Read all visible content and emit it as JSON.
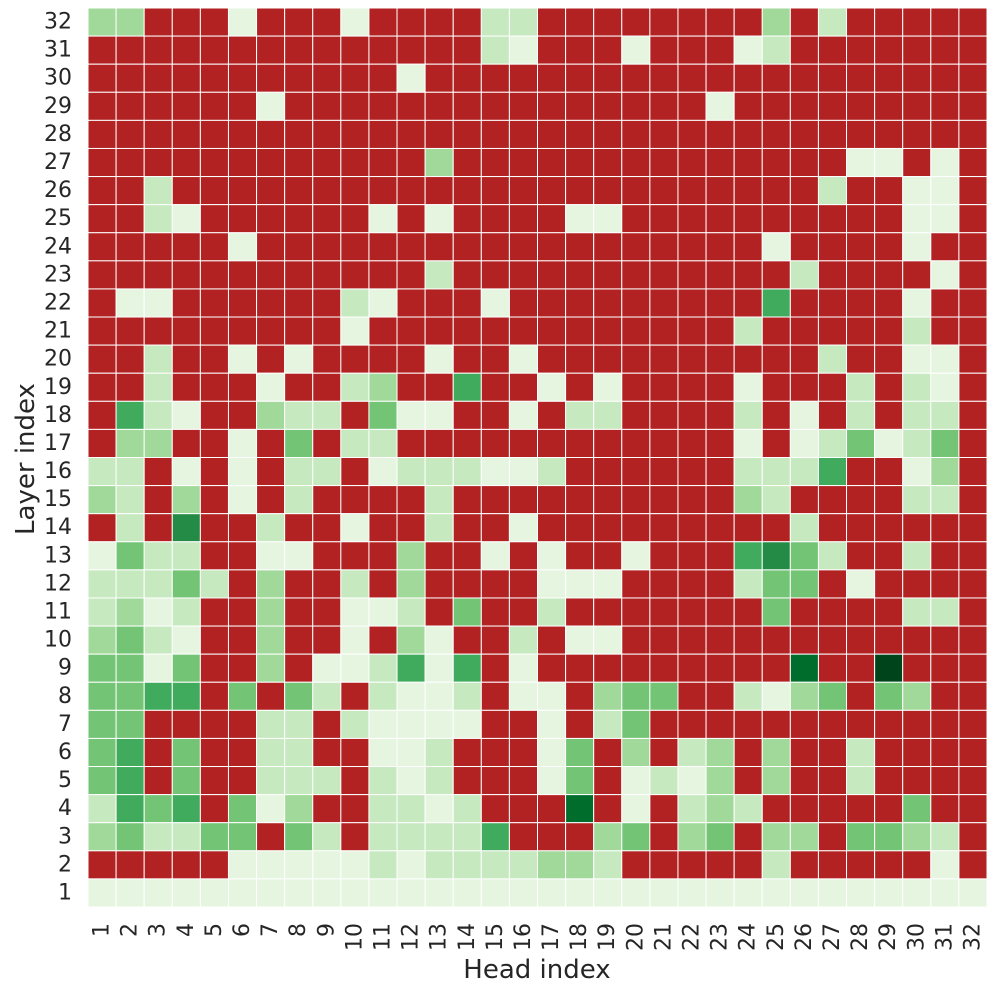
{
  "chart_data": {
    "type": "heatmap",
    "title": "",
    "xlabel": "Head index",
    "ylabel": "Layer index",
    "x_categories": [
      "1",
      "2",
      "3",
      "4",
      "5",
      "6",
      "7",
      "8",
      "9",
      "10",
      "11",
      "12",
      "13",
      "14",
      "15",
      "16",
      "17",
      "18",
      "19",
      "20",
      "21",
      "22",
      "23",
      "24",
      "25",
      "26",
      "27",
      "28",
      "29",
      "30",
      "31",
      "32"
    ],
    "y_categories": [
      "32",
      "31",
      "30",
      "29",
      "28",
      "27",
      "26",
      "25",
      "24",
      "23",
      "22",
      "21",
      "20",
      "19",
      "18",
      "17",
      "16",
      "15",
      "14",
      "13",
      "12",
      "11",
      "10",
      "9",
      "8",
      "7",
      "6",
      "5",
      "4",
      "3",
      "2",
      "1"
    ],
    "value_scale": "0 = not significant (red); 1-8 = increasing green intensity",
    "colors": {
      "red": "#b22222",
      "g1": "#e5f5e0",
      "g2": "#c7e9c0",
      "g3": "#a1d99b",
      "g4": "#74c476",
      "g5": "#41ab5d",
      "g6": "#238b45",
      "g7": "#006d2c",
      "g8": "#00441b"
    },
    "values": [
      "33000100010000220000000030200000",
      "00000000000000210001000120000000",
      "00000000000100000000000000000000",
      "00000010000000000000001000000000",
      "00000000000000000000000000000000",
      "00000000000030000000000000011010",
      "00200000000000000000000000200110",
      "00210000001010000110000000000110",
      "00000100000000000000000010000100",
      "00000000000020000000000002000010",
      "01100000021000100000000050000100",
      "00000000010000000000000200000200",
      "00200101000010010000000000200110",
      "00200010023005001010000100020210",
      "05210032204110010220000201020220",
      "03300104022000000000000101241240",
      "22010102201222112000000222500130",
      "32030102000020000000000320000220",
      "02060020010020010000000002000000",
      "14220011000300101001000564200200",
      "22242030020300001110000244010000",
      "23120030011204002000000040000220",
      "34210030010310020110000000000000",
      "44140030112515010000000007008000",
      "44550404202112011034400213404300",
      "44000022021111001024000000000000",
      "45040022001120001403023030020000",
      "45040022202120001401213030020000",
      "25450413002212000701023200000400",
      "34224404202222500034034033044320",
      "00000111112122223320000020000010",
      "11111111111111111111111111111111"
    ]
  }
}
